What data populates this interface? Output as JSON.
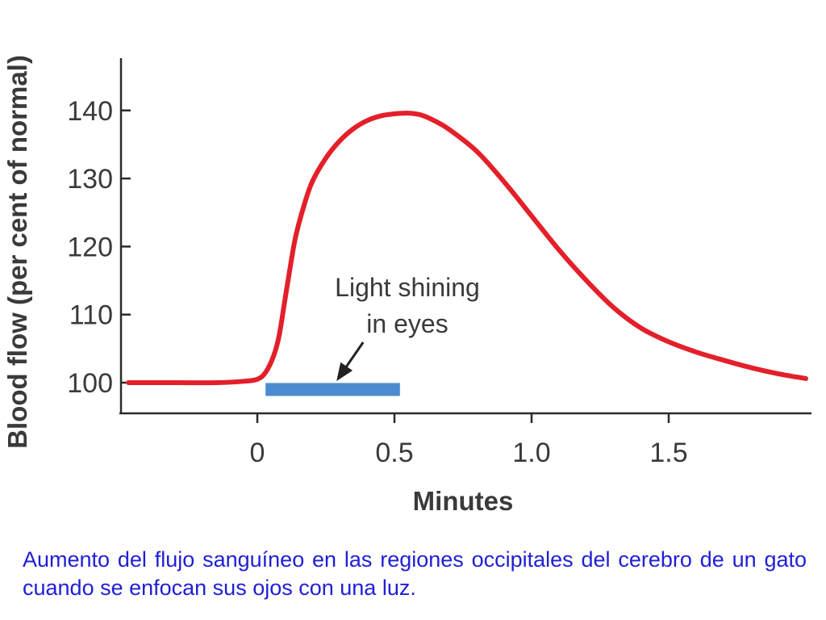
{
  "chart_data": {
    "type": "line",
    "xlabel": "Minutes",
    "ylabel": "Blood flow (per cent of normal)",
    "x_ticks": [
      "0",
      "0.5",
      "1.0",
      "1.5"
    ],
    "y_ticks": [
      "100",
      "110",
      "120",
      "130",
      "140"
    ],
    "xlim": [
      -0.5,
      2.0
    ],
    "ylim": [
      95,
      150
    ],
    "grid": false,
    "series": [
      {
        "color": "#e3202a",
        "x": [
          -0.47,
          -0.3,
          -0.15,
          -0.05,
          0.0,
          0.03,
          0.06,
          0.08,
          0.1,
          0.12,
          0.14,
          0.17,
          0.2,
          0.25,
          0.3,
          0.35,
          0.4,
          0.45,
          0.5,
          0.55,
          0.6,
          0.65,
          0.7,
          0.8,
          0.9,
          1.0,
          1.1,
          1.2,
          1.3,
          1.4,
          1.5,
          1.6,
          1.7,
          1.8,
          1.9,
          2.0
        ],
        "y": [
          100,
          100,
          100,
          100.2,
          100.5,
          101.5,
          104,
          107,
          112,
          117,
          121.5,
          126,
          129.5,
          133,
          135.5,
          137.3,
          138.5,
          139.2,
          139.5,
          139.6,
          139.3,
          138.4,
          137.2,
          134,
          129.5,
          124.5,
          119.5,
          115,
          111,
          108,
          106,
          104.5,
          103.3,
          102.2,
          101.3,
          100.6
        ]
      }
    ],
    "annotations": [
      {
        "text_lines": [
          "Light shining",
          "in eyes"
        ],
        "bar": {
          "x_start": 0.03,
          "x_end": 0.52,
          "y": 99,
          "color": "#4a8ccf"
        },
        "arrow_target": {
          "x": 0.28,
          "y": 100
        }
      }
    ]
  },
  "caption": "Aumento del flujo sanguíneo en las regiones occipitales del cerebro de un gato cuando se enfocan sus ojos con una luz."
}
